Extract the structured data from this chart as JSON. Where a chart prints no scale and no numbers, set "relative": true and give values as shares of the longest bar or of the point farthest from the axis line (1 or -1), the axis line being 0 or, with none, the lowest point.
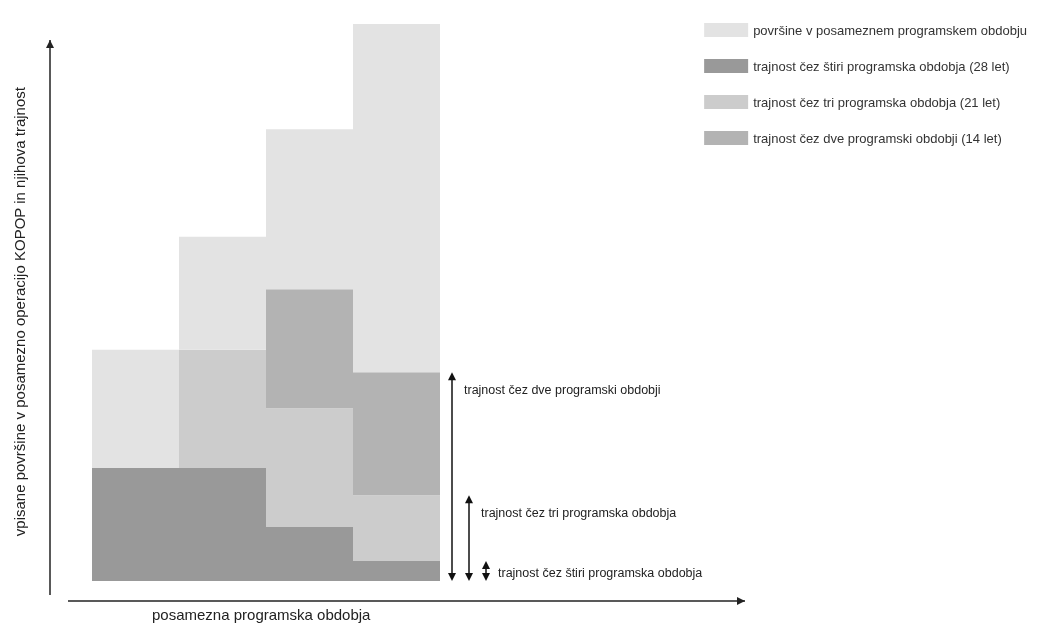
{
  "chart_data": {
    "type": "bar",
    "relative": true,
    "stacked": true,
    "xlabel": "posamezna programska obdobja",
    "ylabel": "vpisane površine v posamezno operacijo KOPOP in njihova trajnost",
    "categories": [
      null,
      null,
      null,
      null
    ],
    "legend": "top right",
    "series": [
      {
        "name": "trajnost čez štiri programska obdobja (28 let)",
        "color": "#999999",
        "values": [
          0.203,
          0.203,
          0.098,
          0.036
        ]
      },
      {
        "name": "trajnost čez tri programska obdobja (21 let)",
        "color": "#cccccc",
        "values": [
          null,
          0.212,
          0.212,
          0.118
        ]
      },
      {
        "name": "trajnost čez dve programski obdobji (14 let)",
        "color": "#b3b3b3",
        "values": [
          null,
          null,
          0.214,
          0.221
        ]
      },
      {
        "name": "površine v posameznem programskem obdobju",
        "color": "#e3e3e3",
        "values": [
          0.212,
          0.203,
          0.287,
          0.625
        ]
      }
    ],
    "annotations": [
      "trajnost čez dve programski obdobji",
      "trajnost čez tri programska obdobja",
      "trajnost čez štiri programska obdobja"
    ]
  }
}
